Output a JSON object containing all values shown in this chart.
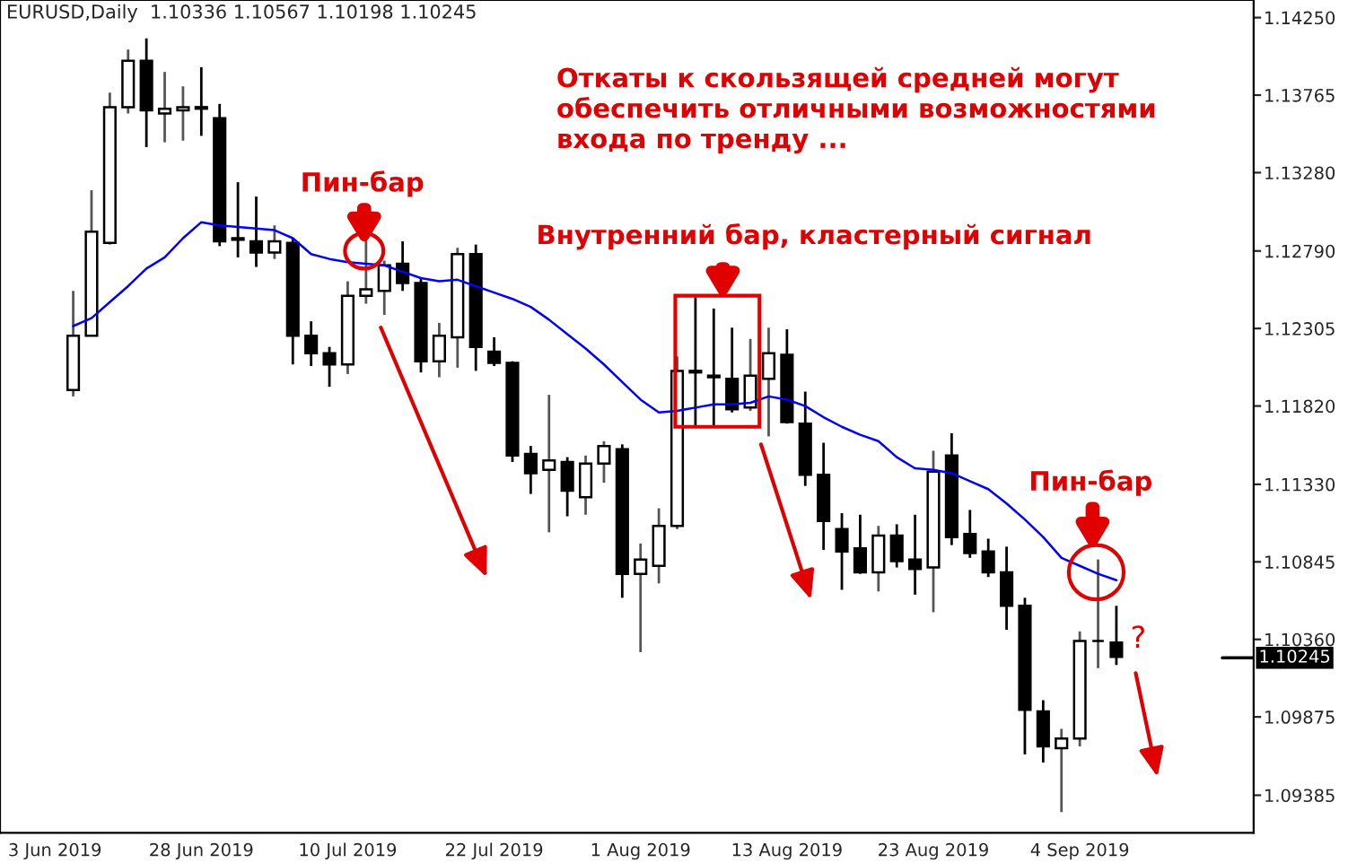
{
  "chart_data": {
    "type": "candlestick",
    "title": "EURUSD,Daily  1.10336 1.10567 1.10198 1.10245",
    "categories": [
      "3 Jun 2019",
      null,
      null,
      null,
      null,
      null,
      null,
      null,
      "28 Jun 2019",
      null,
      null,
      null,
      null,
      null,
      null,
      null,
      "10 Jul 2019",
      null,
      null,
      null,
      null,
      null,
      null,
      null,
      "22 Jul 2019",
      null,
      null,
      null,
      null,
      null,
      null,
      null,
      "1 Aug 2019",
      null,
      null,
      null,
      null,
      null,
      null,
      null,
      "13 Aug 2019",
      null,
      null,
      null,
      null,
      null,
      null,
      null,
      "23 Aug 2019",
      null,
      null,
      null,
      null,
      null,
      null,
      null,
      "4 Sep 2019",
      null,
      null,
      null,
      null,
      null,
      null,
      null,
      null,
      null
    ],
    "ohlc": [
      null,
      [
        1.1192,
        1.1254,
        1.1188,
        1.1226
      ],
      [
        1.1226,
        1.1317,
        1.1226,
        1.1291
      ],
      [
        1.1284,
        1.1378,
        1.1283,
        1.1369
      ],
      [
        1.1369,
        1.1405,
        1.1365,
        1.1398
      ],
      [
        1.1398,
        1.1412,
        1.1344,
        1.1367
      ],
      [
        1.1365,
        1.1391,
        1.1347,
        1.1368
      ],
      [
        1.1367,
        1.1382,
        1.1348,
        1.1369
      ],
      [
        1.1369,
        1.1394,
        1.1351,
        1.1368
      ],
      [
        1.1362,
        1.1371,
        1.1282,
        1.1285
      ],
      [
        1.1287,
        1.1322,
        1.1275,
        1.1286
      ],
      [
        1.1285,
        1.1313,
        1.1269,
        1.1278
      ],
      [
        1.1278,
        1.1295,
        1.1274,
        1.1285
      ],
      [
        1.1284,
        1.1287,
        1.1208,
        1.1226
      ],
      [
        1.1226,
        1.1235,
        1.1207,
        1.1215
      ],
      [
        1.1215,
        1.1219,
        1.1194,
        1.1208
      ],
      [
        1.1208,
        1.126,
        1.1202,
        1.1251
      ],
      [
        1.1251,
        1.1287,
        1.1246,
        1.1255
      ],
      [
        1.1254,
        1.1273,
        1.1239,
        1.127
      ],
      [
        1.1271,
        1.1285,
        1.1254,
        1.1259
      ],
      [
        1.1259,
        1.1262,
        1.1203,
        1.121
      ],
      [
        1.121,
        1.1234,
        1.12,
        1.1226
      ],
      [
        1.1225,
        1.1281,
        1.1206,
        1.1277
      ],
      [
        1.1277,
        1.1283,
        1.1204,
        1.1219
      ],
      [
        1.1216,
        1.1225,
        1.1207,
        1.1209
      ],
      [
        1.1209,
        1.121,
        1.1147,
        1.1151
      ],
      [
        1.1152,
        1.1157,
        1.1127,
        1.114
      ],
      [
        1.1142,
        1.1189,
        1.1103,
        1.1148
      ],
      [
        1.1147,
        1.115,
        1.1113,
        1.1129
      ],
      [
        1.1125,
        1.1151,
        1.1114,
        1.1146
      ],
      [
        1.1146,
        1.116,
        1.1134,
        1.1157
      ],
      [
        1.1155,
        1.1158,
        1.1062,
        1.1077
      ],
      [
        1.1077,
        1.1096,
        1.1028,
        1.1086
      ],
      [
        1.1082,
        1.1118,
        1.1071,
        1.1107
      ],
      [
        1.1107,
        1.1213,
        1.1105,
        1.1204
      ],
      [
        1.1204,
        1.125,
        1.1169,
        1.1203
      ],
      [
        1.1201,
        1.1243,
        1.1169,
        1.12
      ],
      [
        1.1199,
        1.1231,
        1.1178,
        1.118
      ],
      [
        1.1181,
        1.1224,
        1.1179,
        1.1201
      ],
      [
        1.1199,
        1.1231,
        1.1163,
        1.1215
      ],
      [
        1.1214,
        1.123,
        1.1171,
        1.1172
      ],
      [
        1.1171,
        1.1191,
        1.1132,
        1.1139
      ],
      [
        1.1139,
        1.1159,
        1.1092,
        1.111
      ],
      [
        1.1105,
        1.1115,
        1.1067,
        1.1091
      ],
      [
        1.1093,
        1.1114,
        1.1077,
        1.1078
      ],
      [
        1.1078,
        1.1107,
        1.1066,
        1.1101
      ],
      [
        1.1101,
        1.1108,
        1.1081,
        1.1085
      ],
      [
        1.1086,
        1.1114,
        1.1064,
        1.108
      ],
      [
        1.1081,
        1.1154,
        1.1053,
        1.1141
      ],
      [
        1.1151,
        1.1165,
        1.1095,
        1.11
      ],
      [
        1.1102,
        1.1117,
        1.1087,
        1.109
      ],
      [
        1.1091,
        1.1099,
        1.1075,
        1.1078
      ],
      [
        1.1078,
        1.1094,
        1.1042,
        1.1057
      ],
      [
        1.1057,
        1.1062,
        1.0964,
        1.0992
      ],
      [
        1.0991,
        1.0998,
        1.0959,
        1.0969
      ],
      [
        1.0968,
        1.098,
        1.0928,
        1.0974
      ],
      [
        1.0974,
        1.1041,
        1.0969,
        1.1035
      ],
      [
        1.1035,
        1.1086,
        1.1018,
        1.1035
      ],
      [
        1.1034,
        1.1057,
        1.102,
        1.1025
      ],
      null,
      null,
      null,
      null,
      null,
      null,
      null
    ],
    "series": [
      {
        "type": "line",
        "color": "#0000ff",
        "values": [
          null,
          1.1232,
          1.1237,
          1.1247,
          1.1257,
          1.1268,
          1.1275,
          1.1287,
          1.1297,
          1.1295,
          1.1294,
          1.1293,
          1.1292,
          1.1287,
          1.1277,
          1.1274,
          1.1272,
          1.1271,
          1.127,
          1.1266,
          1.1262,
          1.126,
          1.1261,
          1.1257,
          1.1253,
          1.1249,
          1.1244,
          1.1236,
          1.1227,
          1.1218,
          1.1208,
          1.1197,
          1.1186,
          1.1178,
          1.1179,
          1.1181,
          1.1183,
          1.1183,
          1.1184,
          1.1188,
          1.1186,
          1.1182,
          1.1175,
          1.1169,
          1.1164,
          1.116,
          1.115,
          1.1143,
          1.1142,
          1.114,
          1.1135,
          1.113,
          1.1121,
          1.1111,
          1.11,
          1.1087,
          1.1082,
          1.1077,
          1.1073,
          null,
          null,
          null,
          null,
          null,
          null,
          null
        ]
      }
    ],
    "ylim": [
      1.0915,
      1.1436
    ],
    "yticks": [
      {
        "value": 1.1425,
        "label": "1.14250"
      },
      {
        "value": 1.13765,
        "label": "1.13765"
      },
      {
        "value": 1.1328,
        "label": "1.13280"
      },
      {
        "value": 1.1279,
        "label": "1.12790"
      },
      {
        "value": 1.12305,
        "label": "1.12305"
      },
      {
        "value": 1.1182,
        "label": "1.11820"
      },
      {
        "value": 1.1133,
        "label": "1.11330"
      },
      {
        "value": 1.10845,
        "label": "1.10845"
      },
      {
        "value": 1.1036,
        "label": "1.10360"
      },
      {
        "value": 1.09875,
        "label": "1.09875"
      },
      {
        "value": 1.09385,
        "label": "1.09385"
      }
    ],
    "ref_lines": [
      {
        "axis": "y",
        "value": 1.10245,
        "label": "1.10245",
        "color": "#000000"
      }
    ],
    "annotations": [
      "Откаты к скользящей средней могут\nобеспечить отличными возможностями\nвхода по тренду ...",
      "Пин-бар",
      "Внутренний бар, кластерный сигнал",
      "Пин-бар",
      "?"
    ],
    "grid": false
  }
}
